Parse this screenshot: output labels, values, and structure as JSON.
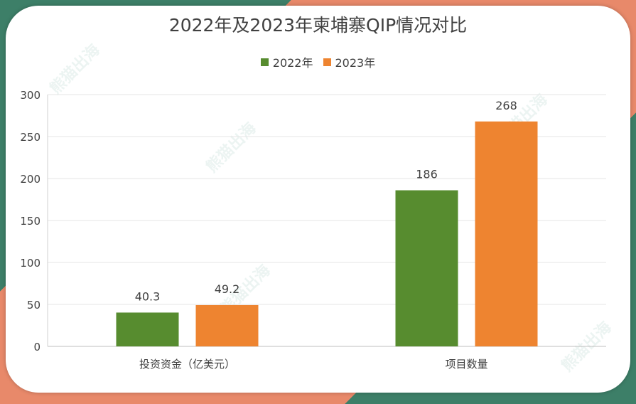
{
  "chart_data": {
    "type": "bar",
    "title": "2022年及2023年柬埔寨QIP情况对比",
    "categories": [
      "投资资金（亿美元）",
      "项目数量"
    ],
    "series": [
      {
        "name": "2022年",
        "values": [
          40.3,
          186
        ],
        "labels": [
          "40.3",
          "186"
        ],
        "color": "#578c2f"
      },
      {
        "name": "2023年",
        "values": [
          49.2,
          268
        ],
        "labels": [
          "49.2",
          "268"
        ],
        "color": "#ee8430"
      }
    ],
    "yticks": [
      "0",
      "50",
      "100",
      "150",
      "200",
      "250",
      "300"
    ],
    "ylim": [
      0,
      300
    ],
    "grid": true,
    "legend": "top-center"
  },
  "watermark": "熊猫出海"
}
